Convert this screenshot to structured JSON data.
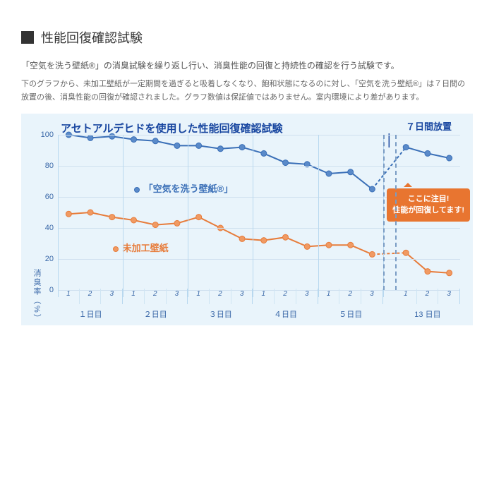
{
  "section_title": "性能回復確認試験",
  "intro": "「空気を洗う壁紙®」の消臭試験を繰り返し行い、消臭性能の回復と持続性の確認を行う試験です。",
  "subintro": "下のグラフから、未加工壁紙が一定期間を過ぎると吸着しなくなり、飽和状態になるのに対し、「空気を洗う壁紙®」は７日間の放置の後、消臭性能の回復が確認されました。グラフ数値は保証値ではありません。室内環境により差があります。",
  "chart": {
    "title": "アセトアルデヒドを使用した性能回復確認試験",
    "title_color": "#1846a0",
    "background": "#e9f4fb",
    "ylabel": "消臭率（%）",
    "ylim": [
      0,
      100
    ],
    "ytick_step": 20,
    "yticks": [
      0,
      20,
      40,
      60,
      80,
      100
    ],
    "grid_color": "#cfe0ef",
    "axis_text_color": "#3a68a8",
    "day_groups": [
      "１日目",
      "２日目",
      "３日目",
      "４日目",
      "５日目",
      "13 日目"
    ],
    "sub_ticks": [
      "1",
      "2",
      "3"
    ],
    "gap_label": "７日間放置",
    "gap_label_color": "#1846a0",
    "callout_text": "ここに注目!\n性能が回復してます!",
    "callout_bg": "#e87530",
    "series": [
      {
        "name": "「空気を洗う壁紙®」",
        "color": "#3a6fb7",
        "marker_fill": "#5a8ac9",
        "values_pre": [
          100,
          98,
          99,
          97,
          96,
          93,
          93,
          91,
          92,
          88,
          82,
          81,
          75,
          76,
          65
        ],
        "values_post": [
          92,
          88,
          85
        ]
      },
      {
        "name": "未加工壁紙",
        "color": "#e77c3b",
        "marker_fill": "#f09a63",
        "values_pre": [
          49,
          50,
          47,
          45,
          42,
          43,
          47,
          40,
          33,
          32,
          34,
          28,
          29,
          29,
          23
        ],
        "values_post": [
          24,
          12,
          11
        ]
      }
    ]
  }
}
